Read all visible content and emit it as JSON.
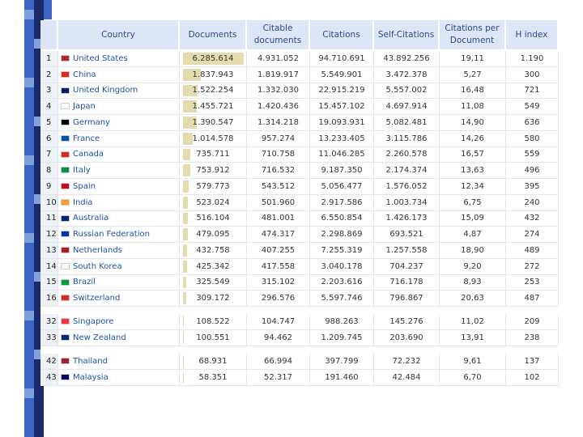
{
  "table": {
    "columns": [
      "Country",
      "Documents",
      "Citable documents",
      "Citations",
      "Self-Citations",
      "Citations per Document",
      "H index"
    ],
    "groups": [
      {
        "rows": [
          [
            1,
            "United States",
            "6.285.614",
            "4.931.052",
            "94.710.691",
            "43.892.256",
            "19,11",
            "1.190"
          ],
          [
            2,
            "China",
            "1.837.943",
            "1.819.917",
            "5.549.901",
            "3.472.378",
            "5,27",
            "300"
          ],
          [
            3,
            "United Kingdom",
            "1.522.254",
            "1.332.030",
            "22.915.219",
            "5.557.002",
            "16,48",
            "721"
          ],
          [
            4,
            "Japan",
            "1.455.721",
            "1.420.436",
            "15.457.102",
            "4.697.914",
            "11,08",
            "549"
          ],
          [
            5,
            "Germany",
            "1.390.547",
            "1.314.218",
            "19.093.931",
            "5.082.481",
            "14,90",
            "636"
          ],
          [
            6,
            "France",
            "1.014.578",
            "957.274",
            "13.233.405",
            "3.115.786",
            "14,26",
            "580"
          ],
          [
            7,
            "Canada",
            "735.711",
            "710.758",
            "11.046.285",
            "2.260.578",
            "16,57",
            "559"
          ],
          [
            8,
            "Italy",
            "753.912",
            "716.532",
            "9.187.350",
            "2.174.374",
            "13,63",
            "496"
          ],
          [
            9,
            "Spain",
            "579.773",
            "543.512",
            "5.056.477",
            "1.576.052",
            "12,34",
            "395"
          ],
          [
            10,
            "India",
            "523.024",
            "501.960",
            "2.917.586",
            "1.003.734",
            "6,75",
            "240"
          ],
          [
            11,
            "Australia",
            "516.104",
            "481.001",
            "6.550.854",
            "1.426.173",
            "15,09",
            "432"
          ],
          [
            12,
            "Russian Federation",
            "479.095",
            "474.317",
            "2.298.869",
            "693.521",
            "4,87",
            "274"
          ],
          [
            13,
            "Netherlands",
            "432.758",
            "407.255",
            "7.255.319",
            "1.257.558",
            "18,90",
            "489"
          ],
          [
            14,
            "South Korea",
            "425.342",
            "417.558",
            "3.040.178",
            "704.237",
            "9,20",
            "272"
          ],
          [
            15,
            "Brazil",
            "325.549",
            "315.102",
            "2.203.616",
            "716.178",
            "8,93",
            "253"
          ],
          [
            16,
            "Switzerland",
            "309.172",
            "296.576",
            "5.597.746",
            "796.867",
            "20,63",
            "487"
          ]
        ]
      },
      {
        "rows": [
          [
            32,
            "Singapore",
            "108.522",
            "104.747",
            "988.263",
            "145.276",
            "11,02",
            "209"
          ],
          [
            33,
            "New Zealand",
            "100.551",
            "94.462",
            "1.209.745",
            "203.690",
            "13,91",
            "238"
          ]
        ]
      },
      {
        "rows": [
          [
            42,
            "Thailand",
            "68.931",
            "66.994",
            "397.799",
            "72.232",
            "9,61",
            "137"
          ],
          [
            43,
            "Malaysia",
            "58.351",
            "52.317",
            "191.460",
            "42.484",
            "6,70",
            "102"
          ]
        ]
      }
    ]
  }
}
